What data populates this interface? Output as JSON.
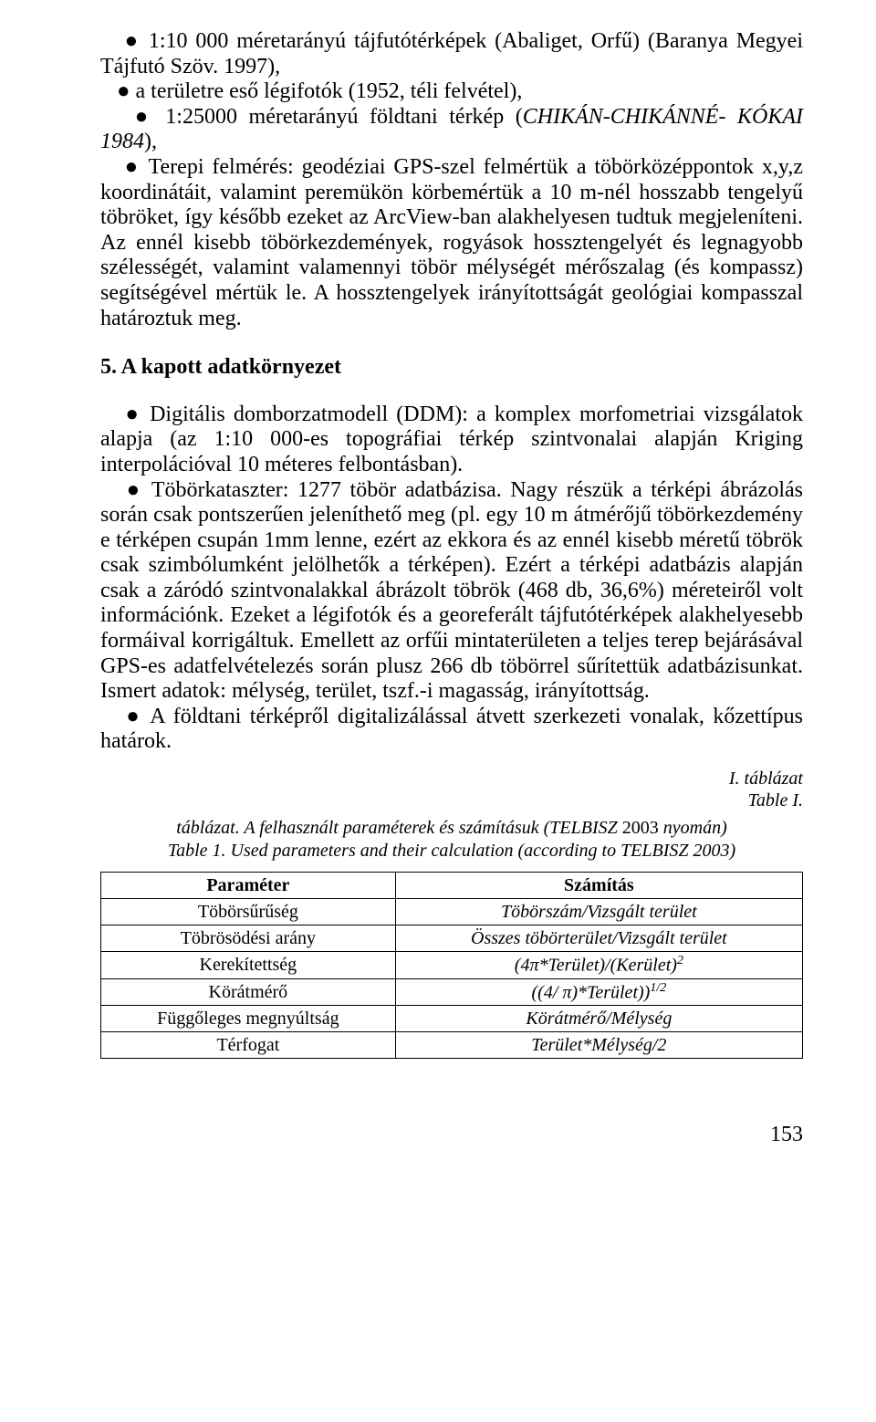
{
  "para1_html": "&nbsp;&nbsp;&nbsp;● 1:10 000 méretarányú tájfutótérképek (Abaliget, Orfű) (Baranya Megyei Tájfutó Szöv. 1997),<br>&nbsp;&nbsp;&nbsp;● a területre eső légifotók (1952, téli felvétel),<br>&nbsp;&nbsp;&nbsp;● 1:25000 méretarányú földtani térkép (<span class=\"italic\">CHIKÁN-CHIKÁNNÉ- KÓKAI 1984</span>),<br>&nbsp;&nbsp;&nbsp;● Terepi felmérés: geodéziai GPS-szel felmértük a töbörközéppontok x,y,z koordinátáit, valamint peremükön körbemértük a 10 m-nél hosszabb tengelyű töbröket, így később ezeket az ArcView-ban alakhelyesen tudtuk megjeleníteni. Az ennél kisebb töbörkezdemények, rogyások hossztengelyét és legnagyobb szélességét, valamint valamennyi töbör mélységét mérőszalag (és kompassz) segítségével mértük le. A hossztengelyek irányítottságát geológiai kompasszal határoztuk meg.",
  "heading5": "5. A kapott adatkörnyezet",
  "para2_html": "&nbsp;&nbsp;&nbsp;● Digitális domborzatmodell (DDM): a komplex morfometriai vizsgálatok alapja (az 1:10 000-es topográfiai térkép szintvonalai alapján Kriging interpolációval 10 méteres felbontásban).<br>&nbsp;&nbsp;&nbsp;● Töbörkataszter: 1277 töbör adatbázisa. Nagy részük a térképi ábrázolás során csak pontszerűen jeleníthető meg (pl. egy 10 m átmérőjű töbörkezdemény e térképen csupán 1mm lenne, ezért az ekkora és az ennél kisebb méretű töbrök csak szimbólumként jelölhetők a térképen). Ezért a térképi adatbázis alapján csak a záródó szintvonalakkal ábrázolt töbrök (468 db, 36,6%) méreteiről volt információnk. Ezeket a légifotók és a georeferált tájfutótérképek alakhelyesebb formáival korrigáltuk. Emellett az orfűi mintaterületen a teljes terep bejárásával GPS-es adatfelvételezés során plusz 266 db töbörrel sűrítettük adatbázisunkat. Ismert adatok: mélység, terület, tszf.-i magasság, irányítottság.<br>&nbsp;&nbsp;&nbsp;● A földtani térképről digitalizálással átvett szerkezeti vonalak, kőzettípus határok.",
  "caption_right1": "I. táblázat",
  "caption_right2": "Table I.",
  "caption_center_html": "táblázat.  A felhasznált paraméterek és számításuk (TELBISZ <span class=\"norm\">2003</span> nyomán)<br>Table 1. Used parameters and their calculation (according to  TELBISZ 2003)",
  "table": {
    "head": {
      "param": "Paraméter",
      "calc": "Számítás"
    },
    "rows": [
      {
        "param": "Töbörsűrűség",
        "calc_html": "Töbörszám/Vizsgált terület"
      },
      {
        "param": "Töbrösödési arány",
        "calc_html": "Összes töbörterület/Vizsgált terület"
      },
      {
        "param": "Kerekítettség",
        "calc_html": "(4π*Terület)/(Kerület)<span class=\"sup\">2</span>"
      },
      {
        "param": "Körátmérő",
        "calc_html": "((4/ π)*Terület))<span class=\"sup\">1/2</span>"
      },
      {
        "param": "Függőleges megnyúltság",
        "calc_html": "Körátmérő/Mélység"
      },
      {
        "param": "Térfogat",
        "calc_html": "Terület*Mélység/2"
      }
    ]
  },
  "page_number": "153"
}
